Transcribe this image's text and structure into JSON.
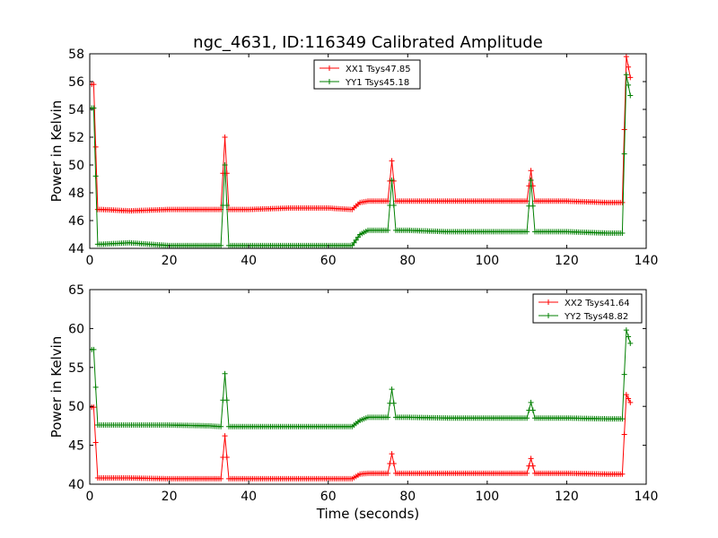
{
  "figure": {
    "title": "ngc_4631, ID:116349 Calibrated Amplitude",
    "xlabel": "Time (seconds)"
  },
  "colors": {
    "red": "#ff0000",
    "green": "#007f00"
  },
  "chart_data": [
    {
      "type": "line",
      "ylabel": "Power in Kelvin",
      "xlim": [
        0,
        140
      ],
      "ylim": [
        44,
        58
      ],
      "xticks": [
        0,
        20,
        40,
        60,
        80,
        100,
        120,
        140
      ],
      "yticks": [
        44,
        46,
        48,
        50,
        52,
        54,
        56,
        58
      ],
      "legend_position": "top-center",
      "marker": "+",
      "series": [
        {
          "name": "XX1 Tsys47.85",
          "color": "#ff0000",
          "x": [
            0,
            1,
            2,
            3,
            10,
            20,
            30,
            33,
            34,
            35,
            40,
            50,
            60,
            66,
            68,
            70,
            75,
            76,
            77,
            80,
            90,
            100,
            110,
            111,
            112,
            120,
            130,
            134,
            135,
            136
          ],
          "y": [
            55.8,
            55.8,
            46.8,
            46.8,
            46.7,
            46.8,
            46.8,
            46.8,
            52.0,
            46.8,
            46.8,
            46.9,
            46.9,
            46.8,
            47.3,
            47.4,
            47.4,
            50.3,
            47.4,
            47.4,
            47.4,
            47.4,
            47.4,
            49.6,
            47.4,
            47.4,
            47.3,
            47.3,
            57.8,
            56.3
          ]
        },
        {
          "name": "YY1 Tsys45.18",
          "color": "#007f00",
          "x": [
            0,
            1,
            2,
            3,
            10,
            20,
            30,
            33,
            34,
            35,
            40,
            50,
            60,
            66,
            68,
            70,
            75,
            76,
            77,
            80,
            90,
            100,
            110,
            111,
            112,
            120,
            130,
            134,
            135,
            136
          ],
          "y": [
            54.1,
            54.1,
            44.3,
            44.3,
            44.4,
            44.2,
            44.2,
            44.2,
            50.0,
            44.2,
            44.2,
            44.2,
            44.2,
            44.2,
            45.0,
            45.3,
            45.3,
            48.9,
            45.3,
            45.3,
            45.2,
            45.2,
            45.2,
            48.9,
            45.2,
            45.2,
            45.1,
            45.1,
            56.5,
            55.0
          ]
        }
      ]
    },
    {
      "type": "line",
      "ylabel": "Power in Kelvin",
      "xlabel": "Time (seconds)",
      "xlim": [
        0,
        140
      ],
      "ylim": [
        40,
        65
      ],
      "xticks": [
        0,
        20,
        40,
        60,
        80,
        100,
        120,
        140
      ],
      "yticks": [
        40,
        45,
        50,
        55,
        60,
        65
      ],
      "legend_position": "top-right",
      "marker": "+",
      "series": [
        {
          "name": "XX2 Tsys41.64",
          "color": "#ff0000",
          "x": [
            0,
            1,
            2,
            3,
            10,
            20,
            30,
            33,
            34,
            35,
            40,
            50,
            60,
            66,
            68,
            70,
            75,
            76,
            77,
            80,
            90,
            100,
            110,
            111,
            112,
            120,
            130,
            134,
            135,
            136
          ],
          "y": [
            49.9,
            49.9,
            40.8,
            40.8,
            40.8,
            40.7,
            40.7,
            40.7,
            46.2,
            40.7,
            40.7,
            40.7,
            40.7,
            40.7,
            41.3,
            41.4,
            41.4,
            43.9,
            41.4,
            41.4,
            41.4,
            41.4,
            41.4,
            43.3,
            41.4,
            41.4,
            41.3,
            41.3,
            51.5,
            50.5
          ]
        },
        {
          "name": "YY2 Tsys48.82",
          "color": "#007f00",
          "x": [
            0,
            1,
            2,
            3,
            10,
            20,
            30,
            33,
            34,
            35,
            40,
            50,
            60,
            66,
            68,
            70,
            75,
            76,
            77,
            80,
            90,
            100,
            110,
            111,
            112,
            120,
            130,
            134,
            135,
            136
          ],
          "y": [
            57.3,
            57.3,
            47.6,
            47.6,
            47.6,
            47.6,
            47.5,
            47.4,
            54.2,
            47.4,
            47.4,
            47.4,
            47.4,
            47.4,
            48.2,
            48.6,
            48.6,
            52.2,
            48.6,
            48.6,
            48.5,
            48.5,
            48.5,
            50.5,
            48.5,
            48.5,
            48.4,
            48.4,
            59.8,
            58.1
          ]
        }
      ]
    }
  ]
}
